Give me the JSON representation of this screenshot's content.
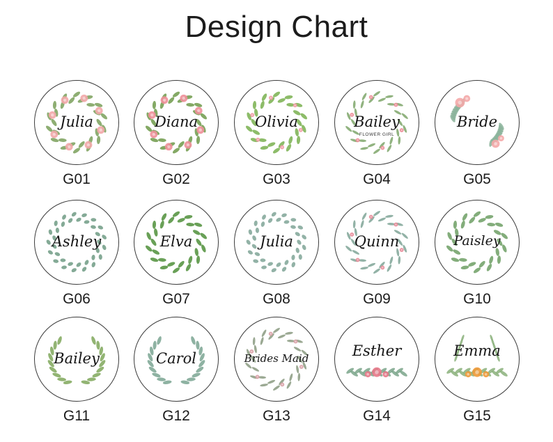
{
  "header": {
    "title": "Design Chart"
  },
  "designs": [
    {
      "code": "G01",
      "name": "Julia",
      "sub": "",
      "style": "floral-ring",
      "leaf": "#7aa05a",
      "flower": "#f2a7a8"
    },
    {
      "code": "G02",
      "name": "Diana",
      "sub": "",
      "style": "floral-ring",
      "leaf": "#6f9a4a",
      "flower": "#ee8f99"
    },
    {
      "code": "G03",
      "name": "Olivia",
      "sub": "",
      "style": "leaf-ring",
      "leaf": "#79b04f",
      "flower": "#f19aa5"
    },
    {
      "code": "G04",
      "name": "Bailey",
      "sub": "FLOWER GIRL",
      "style": "thin-ring",
      "leaf": "#7ea66a",
      "flower": "#ec8c97"
    },
    {
      "code": "G05",
      "name": "Bride",
      "sub": "",
      "style": "corner",
      "leaf": "#8ab39a",
      "flower": "#f4a9a8"
    },
    {
      "code": "G06",
      "name": "Ashley",
      "sub": "",
      "style": "eucalyptus",
      "leaf": "#6e9b84",
      "flower": ""
    },
    {
      "code": "G07",
      "name": "Elva",
      "sub": "",
      "style": "leaf-ring",
      "leaf": "#4f8f3a",
      "flower": ""
    },
    {
      "code": "G08",
      "name": "Julia",
      "sub": "",
      "style": "eucalyptus",
      "leaf": "#7fa596",
      "flower": ""
    },
    {
      "code": "G09",
      "name": "Quinn",
      "sub": "",
      "style": "thin-ring",
      "leaf": "#7fa596",
      "flower": "#e88a98"
    },
    {
      "code": "G10",
      "name": "Paisley",
      "sub": "",
      "style": "leaf-ring",
      "leaf": "#6d9f64",
      "flower": ""
    },
    {
      "code": "G11",
      "name": "Bailey",
      "sub": "",
      "style": "laurel",
      "leaf": "#7fa75a",
      "flower": ""
    },
    {
      "code": "G12",
      "name": "Carol",
      "sub": "",
      "style": "laurel",
      "leaf": "#7aa592",
      "flower": ""
    },
    {
      "code": "G13",
      "name": "Brides Maid",
      "sub": "",
      "style": "thin-ring",
      "leaf": "#8a9a80",
      "flower": "#d9a0a6"
    },
    {
      "code": "G14",
      "name": "Esther",
      "sub": "",
      "style": "bottom-spray",
      "leaf": "#7aa48a",
      "flower": "#e8798a"
    },
    {
      "code": "G15",
      "name": "Emma",
      "sub": "",
      "style": "bottom-spray",
      "leaf": "#8ab07a",
      "flower": "#f09a3a"
    }
  ]
}
